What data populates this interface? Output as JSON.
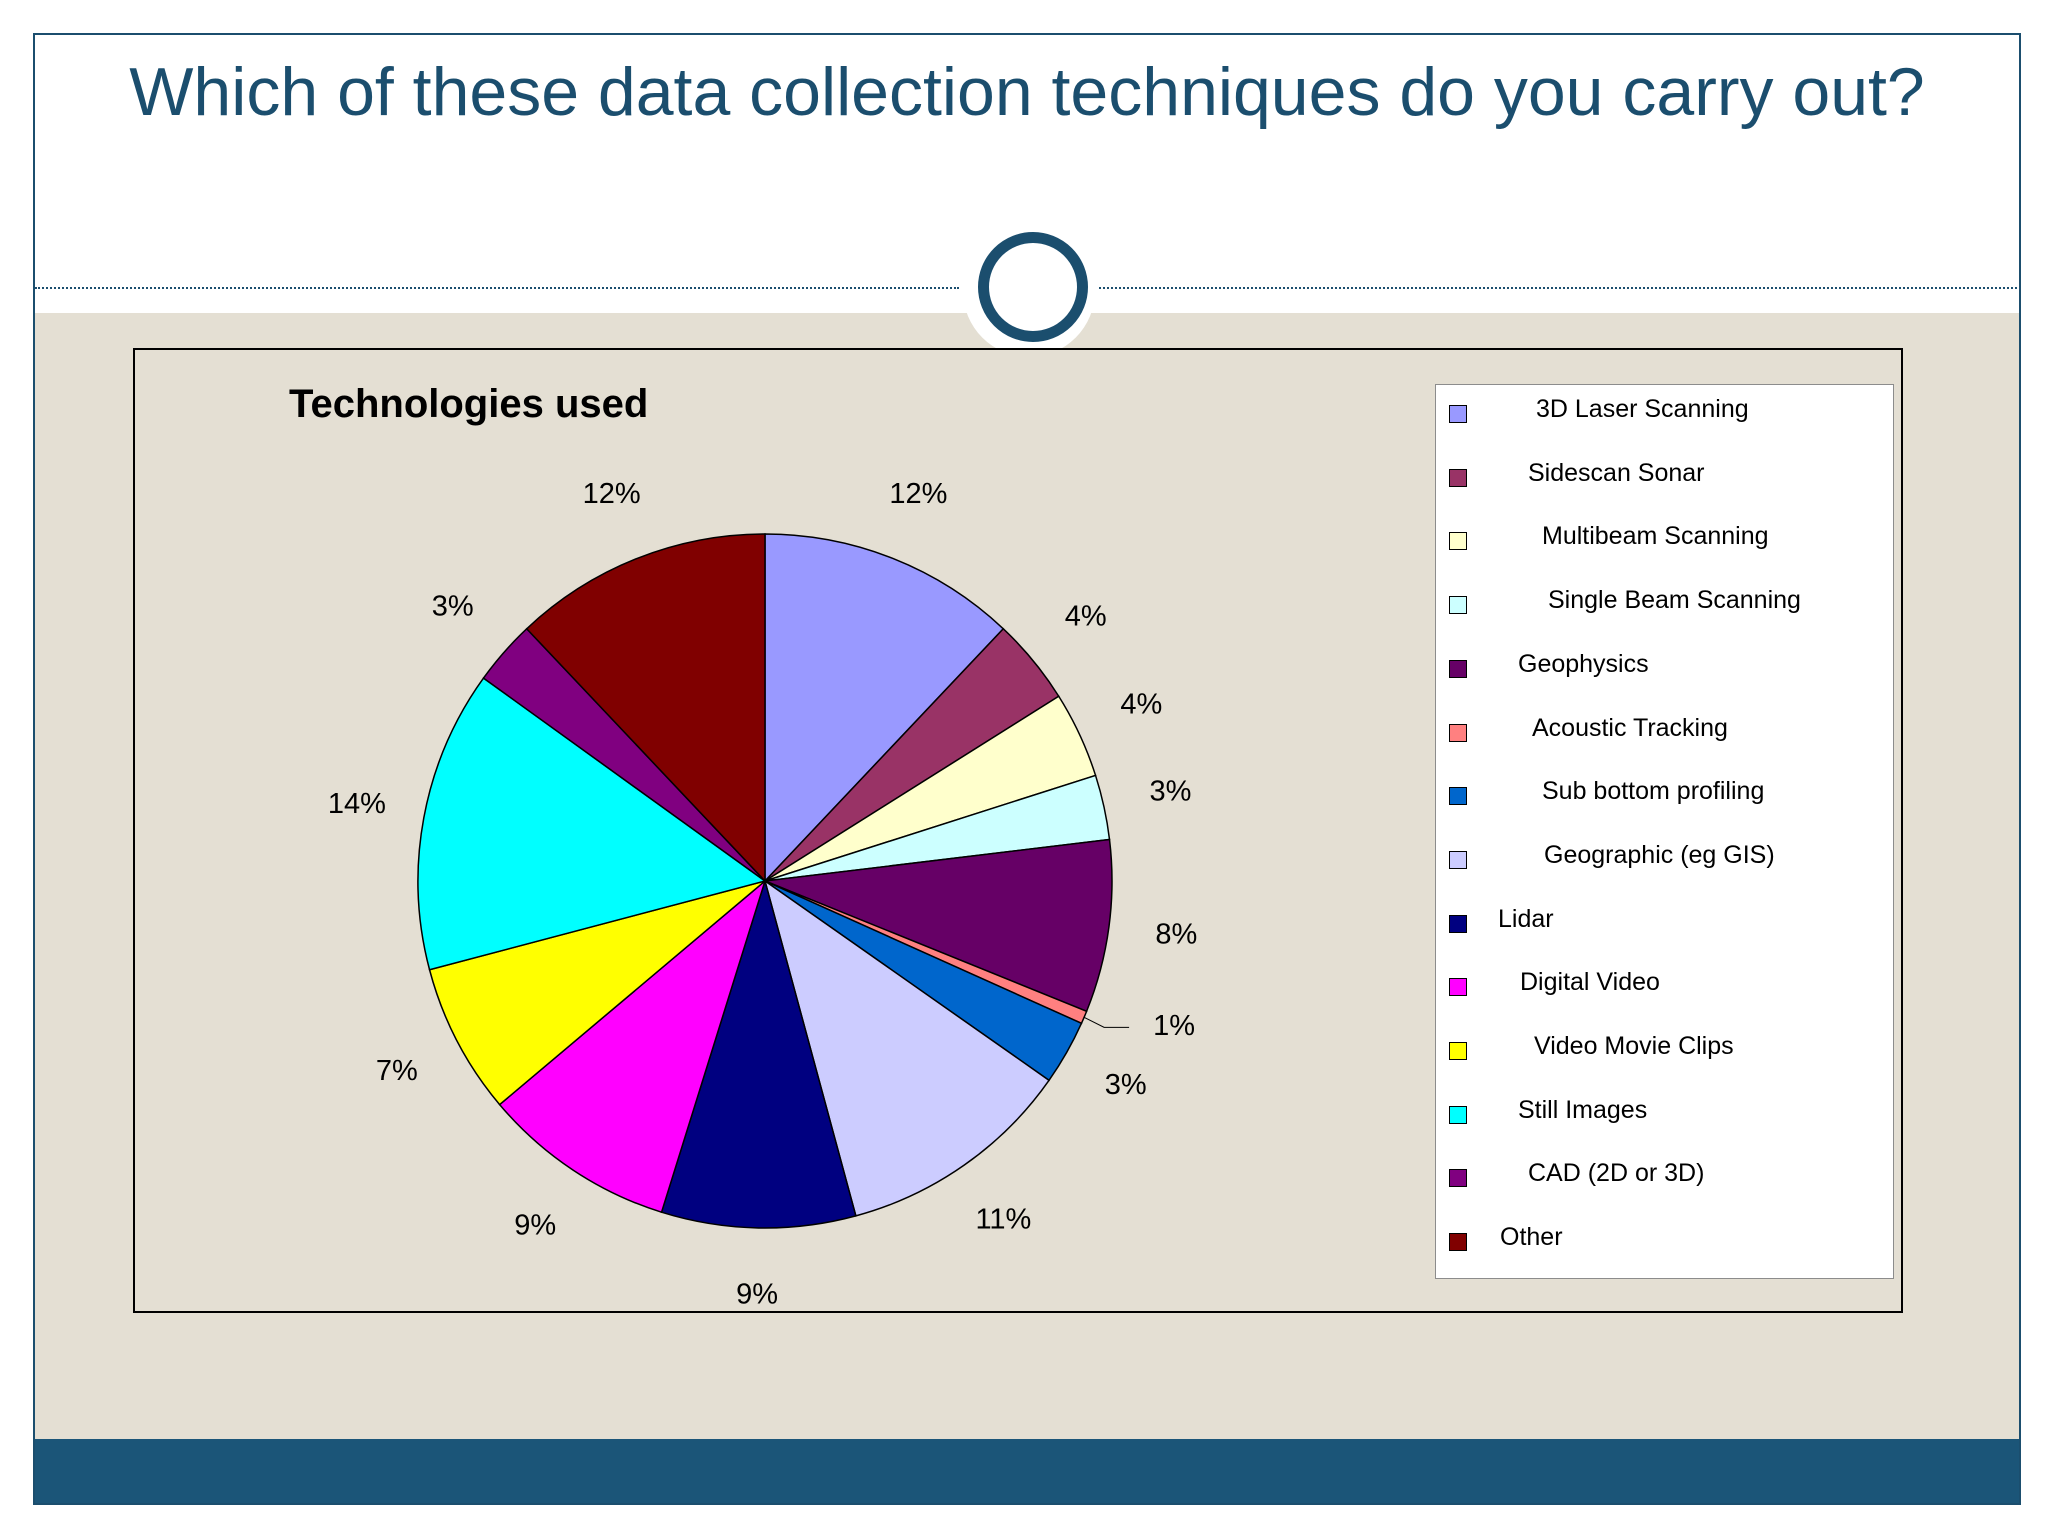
{
  "slide": {
    "title": "Which of these data collection techniques do you carry out?",
    "colors": {
      "accent": "#1b4e6e",
      "content_bg": "#e4dfd3",
      "footer": "#1b5578"
    }
  },
  "chart_data": {
    "type": "pie",
    "title": "Technologies used",
    "legend_placement": "right",
    "slices": [
      {
        "name": "3D Laser Scanning",
        "value": 12,
        "label": "12%",
        "color": "#9999ff"
      },
      {
        "name": "Sidescan Sonar",
        "value": 4,
        "label": "4%",
        "color": "#993366"
      },
      {
        "name": "Multibeam Scanning",
        "value": 4,
        "label": "4%",
        "color": "#ffffcc"
      },
      {
        "name": "Single Beam Scanning",
        "value": 3,
        "label": "3%",
        "color": "#ccffff"
      },
      {
        "name": "Geophysics",
        "value": 8,
        "label": "8%",
        "color": "#660066"
      },
      {
        "name": "Acoustic Tracking",
        "value": 0.6,
        "label": "1%",
        "color": "#ff8080"
      },
      {
        "name": "Sub bottom profiling",
        "value": 3,
        "label": "3%",
        "color": "#0066cc"
      },
      {
        "name": "Geographic (eg GIS)",
        "value": 11,
        "label": "11%",
        "color": "#ccccff"
      },
      {
        "name": "Lidar",
        "value": 9,
        "label": "9%",
        "color": "#000080"
      },
      {
        "name": "Digital Video",
        "value": 9,
        "label": "9%",
        "color": "#ff00ff"
      },
      {
        "name": "Video Movie Clips",
        "value": 7,
        "label": "7%",
        "color": "#ffff00"
      },
      {
        "name": "Still Images",
        "value": 14,
        "label": "14%",
        "color": "#00ffff"
      },
      {
        "name": "CAD (2D or 3D)",
        "value": 3,
        "label": "3%",
        "color": "#800080"
      },
      {
        "name": "Other",
        "value": 12,
        "label": "12%",
        "color": "#800000"
      }
    ]
  }
}
